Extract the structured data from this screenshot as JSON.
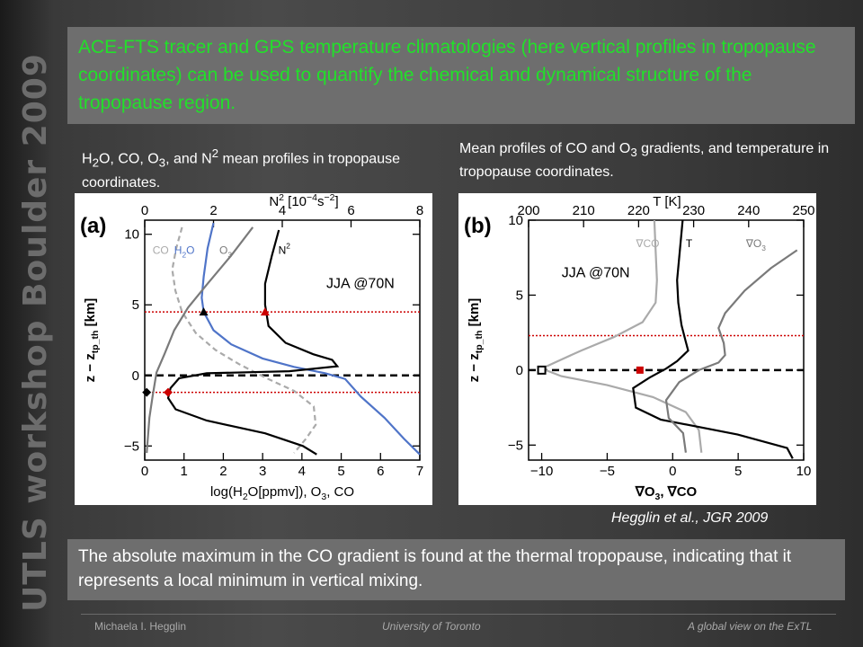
{
  "sidebar": {
    "title": "UTLS workshop Boulder 2009"
  },
  "header": {
    "text": "ACE-FTS tracer and GPS temperature climatologies (here vertical profiles in tropopause coordinates) can be used to quantify the chemical and dynamical structure of the tropopause region."
  },
  "captions": {
    "a": {
      "part1": "H",
      "sub1": "2",
      "part2": "O, CO, O",
      "sub2": "3",
      "part3": ", and N",
      "sup1": "2",
      "part4": " mean profiles in tropopause coordinates."
    },
    "b": {
      "part1": "Mean profiles of CO and O",
      "sub1": "3",
      "part2": "  gradients, and temperature in tropopause coordinates."
    }
  },
  "citation": "Hegglin et al., JGR 2009",
  "conclusion": "The absolute maximum in the CO gradient is found at the thermal tropopause, indicating that it represents a local minimum in vertical mixing.",
  "footer": {
    "author": "Michaela I. Hegglin",
    "institution": "University of Toronto",
    "talk_title": "A global view on the ExTL"
  },
  "chart_data": [
    {
      "type": "line",
      "panel_label": "(a)",
      "season": "JJA @70N",
      "xlabel": "log(H2O[ppmv]), O3, CO",
      "xlabel_parts": {
        "main": "log(H",
        "s1": "2",
        "mid": "O[ppmv]), O",
        "s2": "3",
        "end": ", CO"
      },
      "x2label": "N² [10⁻⁴s⁻²]",
      "x2label_parts": {
        "a": "N",
        "sup_a": "2",
        "b": " [10",
        "sup_b": "−4",
        "c": "s",
        "sup_c": "−2",
        "d": "]"
      },
      "ylabel": "z − z_tp_th [km]",
      "ylabel_parts": {
        "a": "z − z",
        "sub": "tp_th",
        "b": " [km]"
      },
      "xlim": [
        0,
        7
      ],
      "x2lim": [
        0,
        8
      ],
      "ylim": [
        -6,
        11
      ],
      "xticks": [
        "0",
        "1",
        "2",
        "3",
        "4",
        "5",
        "6",
        "7"
      ],
      "x2ticks": [
        "0",
        "2",
        "4",
        "6",
        "8"
      ],
      "yticks": [
        "−5",
        "0",
        "5",
        "10"
      ],
      "series": [
        {
          "name": "CO",
          "label": "CO",
          "color": "#aaaaaa",
          "dash": true,
          "points": [
            [
              0.95,
              10.5
            ],
            [
              0.8,
              9
            ],
            [
              0.7,
              7.5
            ],
            [
              0.78,
              6
            ],
            [
              0.95,
              4.5
            ],
            [
              1.3,
              3
            ],
            [
              1.8,
              1.8
            ],
            [
              2.4,
              0.8
            ],
            [
              3.1,
              -0.2
            ],
            [
              3.8,
              -1.1
            ],
            [
              4.3,
              -2.2
            ],
            [
              4.35,
              -3.5
            ],
            [
              4.1,
              -4.5
            ],
            [
              3.8,
              -5.5
            ]
          ]
        },
        {
          "name": "H2O",
          "label_parts": {
            "a": "H",
            "s": "2",
            "b": "O"
          },
          "color": "#4f74c8",
          "dash": false,
          "points": [
            [
              1.75,
              10.8
            ],
            [
              1.6,
              9
            ],
            [
              1.5,
              7
            ],
            [
              1.45,
              5.5
            ],
            [
              1.5,
              4.5
            ],
            [
              1.75,
              3.2
            ],
            [
              2.2,
              2.2
            ],
            [
              3.0,
              1.2
            ],
            [
              3.8,
              0.6
            ],
            [
              4.6,
              0.15
            ],
            [
              5.1,
              -0.25
            ],
            [
              5.5,
              -1.5
            ],
            [
              6.1,
              -3
            ],
            [
              6.6,
              -4.5
            ],
            [
              7.0,
              -5.6
            ]
          ]
        },
        {
          "name": "O3",
          "label_parts": {
            "a": "O",
            "s": "3"
          },
          "color": "#7a7a7a",
          "dash": false,
          "points": [
            [
              2.75,
              10.5
            ],
            [
              2.2,
              8.5
            ],
            [
              1.6,
              6.5
            ],
            [
              1.1,
              4.8
            ],
            [
              0.75,
              3.2
            ],
            [
              0.5,
              1.5
            ],
            [
              0.3,
              0.2
            ],
            [
              0.2,
              -1.5
            ],
            [
              0.12,
              -3
            ],
            [
              0.05,
              -5.5
            ]
          ]
        },
        {
          "name": "N2",
          "label_parts": {
            "a": "N",
            "s": "2"
          },
          "color": "#000000",
          "dash": false,
          "axis": "top",
          "points": [
            [
              3.9,
              10.3
            ],
            [
              3.7,
              8.5
            ],
            [
              3.5,
              6.5
            ],
            [
              3.5,
              5
            ],
            [
              3.6,
              3.5
            ],
            [
              4.1,
              2.3
            ],
            [
              4.9,
              1.5
            ],
            [
              5.45,
              1.1
            ],
            [
              5.6,
              0.65
            ],
            [
              4.2,
              0.3
            ],
            [
              1.8,
              0.15
            ],
            [
              1.0,
              -0.2
            ],
            [
              0.75,
              -0.9
            ],
            [
              0.68,
              -1.6
            ],
            [
              0.9,
              -2.4
            ],
            [
              1.8,
              -3.2
            ],
            [
              3.5,
              -4.1
            ],
            [
              4.6,
              -5
            ],
            [
              5.0,
              -5.6
            ]
          ]
        }
      ],
      "hlines": [
        {
          "y": 4.5,
          "color": "#cc0000",
          "style": "dotted"
        },
        {
          "y": 0,
          "color": "#000000",
          "style": "dashed"
        },
        {
          "y": -1.2,
          "color": "#cc0000",
          "style": "dotted"
        }
      ],
      "markers": [
        {
          "x": 1.5,
          "y": 4.5,
          "shape": "triangle",
          "color": "#000000"
        },
        {
          "x": 3.5,
          "y": 4.5,
          "shape": "triangle",
          "color": "#cc0000",
          "axis": "top"
        },
        {
          "x": 0.05,
          "y": -1.2,
          "shape": "diamond",
          "color": "#000000"
        },
        {
          "x": 0.68,
          "y": -1.2,
          "shape": "diamond",
          "color": "#cc0000",
          "axis": "top"
        }
      ]
    },
    {
      "type": "line",
      "panel_label": "(b)",
      "season": "JJA @70N",
      "xlabel_parts": {
        "a": "∇O",
        "s": "3",
        "b": ", ∇CO"
      },
      "x2label": "T [K]",
      "ylabel_parts": {
        "a": "z − z",
        "sub": "tp_th",
        "b": " [km]"
      },
      "xlim": [
        -11,
        10
      ],
      "x2lim": [
        200,
        250
      ],
      "ylim": [
        -6,
        10
      ],
      "xticks": [
        "−10",
        "−5",
        "0",
        "5",
        "10"
      ],
      "x2ticks": [
        "200",
        "210",
        "220",
        "230",
        "240",
        "250"
      ],
      "yticks": [
        "−5",
        "0",
        "5",
        "10"
      ],
      "series": [
        {
          "name": "∇CO",
          "label": "∇CO",
          "color": "#aaaaaa",
          "axis": "bottom",
          "points": [
            [
              -1.4,
              10
            ],
            [
              -1.3,
              8
            ],
            [
              -1.2,
              6
            ],
            [
              -1.3,
              4.5
            ],
            [
              -2.3,
              3.2
            ],
            [
              -4.5,
              2.2
            ],
            [
              -7,
              1.3
            ],
            [
              -9,
              0.5
            ],
            [
              -10,
              0.1
            ],
            [
              -8.5,
              -0.4
            ],
            [
              -5,
              -1
            ],
            [
              -1.5,
              -1.8
            ],
            [
              1,
              -2.8
            ],
            [
              2,
              -4
            ],
            [
              2.2,
              -5.5
            ]
          ]
        },
        {
          "name": "T",
          "label": "T",
          "color": "#000000",
          "axis": "top",
          "points": [
            [
              228,
              10
            ],
            [
              227.5,
              8
            ],
            [
              227,
              6
            ],
            [
              227.2,
              4.5
            ],
            [
              227.8,
              3
            ],
            [
              228.5,
              2
            ],
            [
              229,
              1.3
            ],
            [
              227,
              0.6
            ],
            [
              225,
              0.1
            ],
            [
              222,
              -0.5
            ],
            [
              219,
              -1.2
            ],
            [
              219.5,
              -2.5
            ],
            [
              224,
              -3.3
            ],
            [
              238,
              -4.3
            ],
            [
              247,
              -5.2
            ],
            [
              248,
              -5.9
            ]
          ]
        },
        {
          "name": "∇O3",
          "label_parts": {
            "a": "∇O",
            "s": "3"
          },
          "color": "#7a7a7a",
          "axis": "bottom",
          "points": [
            [
              9.5,
              8
            ],
            [
              7.5,
              6.8
            ],
            [
              5.5,
              5.3
            ],
            [
              4,
              3.8
            ],
            [
              3.5,
              2.8
            ],
            [
              3.9,
              1.8
            ],
            [
              4.0,
              1.0
            ],
            [
              3.5,
              0.5
            ],
            [
              2,
              0
            ],
            [
              0.5,
              -0.8
            ],
            [
              -0.5,
              -2
            ],
            [
              -0.3,
              -3.2
            ],
            [
              0.8,
              -4.2
            ],
            [
              1,
              -5.5
            ]
          ]
        }
      ],
      "hlines": [
        {
          "y": 2.3,
          "color": "#cc0000",
          "style": "dotted"
        },
        {
          "y": 0,
          "color": "#000000",
          "style": "dashed"
        }
      ],
      "markers": [
        {
          "x": -10,
          "y": 0,
          "shape": "square-open",
          "color": "#000000"
        },
        {
          "x": -2.5,
          "y": 0,
          "shape": "square",
          "color": "#cc0000"
        }
      ]
    }
  ]
}
